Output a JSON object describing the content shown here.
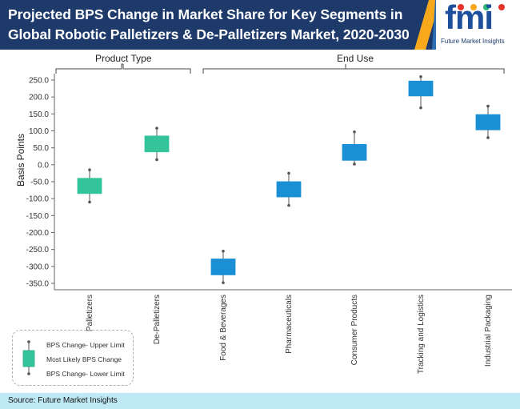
{
  "header": {
    "title_line1": "Projected BPS Change in Market Share for Key Segments in",
    "title_line2": "Global Robotic Palletizers & De-Palletizers Market, 2020-2030"
  },
  "logo": {
    "mark": "fmi",
    "tagline": "Future Market Insights",
    "colors": [
      "#e63329",
      "#f7a81b",
      "#2bb673",
      "#1d4f9c"
    ]
  },
  "groups": {
    "product_type": "Product Type",
    "end_use": "End Use"
  },
  "legend": {
    "upper": "BPS Change- Upper Limit",
    "likely": "Most Likely BPS Change",
    "lower": "BPS Change- Lower Limit"
  },
  "footer": {
    "source": "Source: Future Market Insights"
  },
  "chart_data": {
    "type": "box",
    "ylabel": "Basis Points",
    "ylim": [
      -360,
      260
    ],
    "yticks": [
      250,
      200,
      150,
      100,
      50,
      0,
      -50,
      -100,
      -150,
      -200,
      -250,
      -300,
      -350
    ],
    "ytick_labels": [
      "250.0",
      "200.0",
      "150.0",
      "100.0",
      "50.0",
      "0.0",
      "-50.0",
      "-100.0",
      "-150.0",
      "-200.0",
      "-250.0",
      "-300.0",
      "-350.0"
    ],
    "colors": {
      "product_type": "#33c49a",
      "end_use": "#1b8fd6"
    },
    "categories": [
      "Palletizers",
      "De-Palletizers",
      "Food & Beverages",
      "Pharmaceuticals",
      "Consumer Products",
      "Tracking and Logistics",
      "Industrial Packaging"
    ],
    "groups": [
      "product_type",
      "product_type",
      "end_use",
      "end_use",
      "end_use",
      "end_use",
      "end_use"
    ],
    "upper": [
      -15,
      108,
      -255,
      -25,
      97,
      260,
      173
    ],
    "box_high": [
      -40,
      85,
      -278,
      -50,
      60,
      247,
      148
    ],
    "box_low": [
      -85,
      38,
      -325,
      -95,
      13,
      203,
      103
    ],
    "lower": [
      -110,
      15,
      -348,
      -120,
      2,
      168,
      80
    ]
  }
}
